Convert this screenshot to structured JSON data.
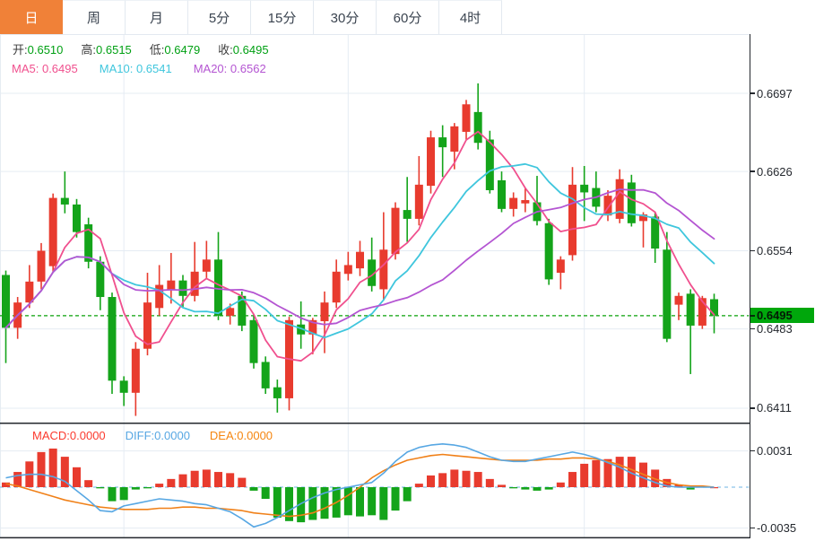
{
  "header": {
    "tabs": [
      {
        "label": "日",
        "selected": true
      },
      {
        "label": "周",
        "selected": false
      },
      {
        "label": "月",
        "selected": false
      },
      {
        "label": "5分",
        "selected": false
      },
      {
        "label": "15分",
        "selected": false
      },
      {
        "label": "30分",
        "selected": false
      },
      {
        "label": "60分",
        "selected": false
      },
      {
        "label": "4时",
        "selected": false
      }
    ]
  },
  "overlay": {
    "ohlc": [
      {
        "label": "开:",
        "value": "0.6510"
      },
      {
        "label": "高:",
        "value": "0.6515"
      },
      {
        "label": "低:",
        "value": "0.6479"
      },
      {
        "label": "收:",
        "value": "0.6495"
      }
    ],
    "ma": [
      {
        "label": "MA5:",
        "value": "0.6495"
      },
      {
        "label": "MA10:",
        "value": "0.6541"
      },
      {
        "label": "MA20:",
        "value": "0.6562"
      }
    ],
    "macd": [
      {
        "label": "MACD:",
        "value": "0.0000"
      },
      {
        "label": "DIFF:",
        "value": "0.0000"
      },
      {
        "label": "DEA:",
        "value": "0.0000"
      }
    ]
  },
  "price_axis": {
    "ticks": [
      "0.6697",
      "0.6626",
      "0.6554",
      "0.6483",
      "0.6411"
    ],
    "tag": "0.6495"
  },
  "macd_axis": {
    "ticks": [
      "0.0031",
      "-0.0035"
    ]
  },
  "colors": {
    "accent_tab": "#f08138",
    "candle_up": "#e83b2e",
    "candle_down": "#14a41a",
    "ma5": "#f0508e",
    "ma10": "#3fc6dd",
    "ma20": "#b455d2",
    "diff_line": "#57a7e3",
    "dea_line": "#f08018",
    "hist_up": "#e83b2e",
    "hist_down": "#14a41a",
    "tag_bg": "#00a70c",
    "dashed_price": "#0aa00a",
    "zero_dash": "#8cc3ea",
    "grid": "#e5ecf3",
    "frame": "#23272d",
    "ohlc_value_green": "#00a013"
  },
  "chart_data": [
    {
      "type": "candlestick",
      "title": "AUD daily candlestick with MA5/MA10/MA20",
      "last_bar": {
        "open": 0.651,
        "high": 0.6515,
        "low": 0.6479,
        "close": 0.6495
      },
      "ma_values": {
        "MA5": 0.6495,
        "MA10": 0.6541,
        "MA20": 0.6562
      },
      "ma_periods": [
        5,
        10,
        20
      ],
      "y_ticks": [
        0.6697,
        0.6626,
        0.6554,
        0.6483,
        0.6411
      ],
      "ylim": [
        0.6404,
        0.675
      ],
      "highlight_price": 0.6495,
      "grid": true,
      "x_gridline_indices": [
        10,
        29,
        49
      ],
      "up_color_meaning": "red = close above open, green = close below open",
      "candles": [
        [
          0.6532,
          0.6536,
          0.6452,
          0.6484
        ],
        [
          0.6484,
          0.6512,
          0.6474,
          0.6507
        ],
        [
          0.6507,
          0.6541,
          0.6502,
          0.6526
        ],
        [
          0.6526,
          0.6561,
          0.6519,
          0.6554
        ],
        [
          0.654,
          0.6606,
          0.6534,
          0.6602
        ],
        [
          0.6602,
          0.6626,
          0.6588,
          0.6596
        ],
        [
          0.6596,
          0.6601,
          0.6566,
          0.6571
        ],
        [
          0.6578,
          0.6584,
          0.6538,
          0.6544
        ],
        [
          0.6544,
          0.6549,
          0.65,
          0.6512
        ],
        [
          0.6512,
          0.6516,
          0.6424,
          0.6436
        ],
        [
          0.6436,
          0.644,
          0.6413,
          0.6425
        ],
        [
          0.6425,
          0.6471,
          0.6404,
          0.6465
        ],
        [
          0.6465,
          0.6534,
          0.6459,
          0.6507
        ],
        [
          0.6502,
          0.6541,
          0.6495,
          0.6523
        ],
        [
          0.6518,
          0.6552,
          0.6506,
          0.6527
        ],
        [
          0.6527,
          0.6532,
          0.6503,
          0.6513
        ],
        [
          0.6513,
          0.6562,
          0.6508,
          0.6535
        ],
        [
          0.6535,
          0.6563,
          0.6528,
          0.6546
        ],
        [
          0.6546,
          0.6571,
          0.6491,
          0.6495
        ],
        [
          0.6495,
          0.6506,
          0.6487,
          0.6502
        ],
        [
          0.6513,
          0.6517,
          0.6481,
          0.6486
        ],
        [
          0.6491,
          0.6496,
          0.6447,
          0.6452
        ],
        [
          0.6453,
          0.6458,
          0.6424,
          0.6429
        ],
        [
          0.643,
          0.6437,
          0.6407,
          0.642
        ],
        [
          0.642,
          0.6494,
          0.6409,
          0.6491
        ],
        [
          0.6487,
          0.6508,
          0.6465,
          0.6478
        ],
        [
          0.6478,
          0.6493,
          0.646,
          0.6491
        ],
        [
          0.649,
          0.6517,
          0.6461,
          0.6507
        ],
        [
          0.6507,
          0.6546,
          0.6502,
          0.6535
        ],
        [
          0.6533,
          0.6553,
          0.6527,
          0.6541
        ],
        [
          0.6538,
          0.6563,
          0.6531,
          0.6553
        ],
        [
          0.6546,
          0.6566,
          0.6517,
          0.6522
        ],
        [
          0.6519,
          0.6589,
          0.6509,
          0.6555
        ],
        [
          0.6551,
          0.6598,
          0.6546,
          0.6593
        ],
        [
          0.6591,
          0.6621,
          0.6562,
          0.6583
        ],
        [
          0.6583,
          0.664,
          0.6577,
          0.6614
        ],
        [
          0.6613,
          0.6663,
          0.6606,
          0.6657
        ],
        [
          0.6657,
          0.6668,
          0.6621,
          0.6648
        ],
        [
          0.6644,
          0.667,
          0.6628,
          0.6667
        ],
        [
          0.6662,
          0.6691,
          0.6655,
          0.6687
        ],
        [
          0.668,
          0.6706,
          0.6646,
          0.6652
        ],
        [
          0.6655,
          0.6663,
          0.6606,
          0.6609
        ],
        [
          0.6618,
          0.6626,
          0.6589,
          0.6592
        ],
        [
          0.6592,
          0.6607,
          0.6585,
          0.6602
        ],
        [
          0.6597,
          0.6611,
          0.6589,
          0.66
        ],
        [
          0.6598,
          0.6622,
          0.6577,
          0.6581
        ],
        [
          0.6579,
          0.6583,
          0.6523,
          0.6528
        ],
        [
          0.6534,
          0.6549,
          0.6519,
          0.6546
        ],
        [
          0.655,
          0.663,
          0.6545,
          0.6614
        ],
        [
          0.6614,
          0.6631,
          0.6581,
          0.6607
        ],
        [
          0.6611,
          0.6626,
          0.6589,
          0.6594
        ],
        [
          0.6586,
          0.6609,
          0.6581,
          0.6604
        ],
        [
          0.6583,
          0.6628,
          0.6579,
          0.6619
        ],
        [
          0.6616,
          0.6623,
          0.6576,
          0.6579
        ],
        [
          0.6581,
          0.6589,
          0.6557,
          0.6587
        ],
        [
          0.6585,
          0.6589,
          0.6543,
          0.6556
        ],
        [
          0.6555,
          0.6571,
          0.6471,
          0.6474
        ],
        [
          0.6505,
          0.6516,
          0.6491,
          0.6513
        ],
        [
          0.6515,
          0.6519,
          0.6442,
          0.6486
        ],
        [
          0.6486,
          0.6513,
          0.6483,
          0.6511
        ],
        [
          0.651,
          0.6515,
          0.6479,
          0.6495
        ]
      ]
    },
    {
      "type": "macd",
      "title": "MACD(12,26,9)",
      "current": {
        "MACD": 0.0,
        "DIFF": 0.0,
        "DEA": 0.0
      },
      "y_ticks": [
        0.0031,
        -0.0035
      ],
      "zero_line": 0,
      "histogram": [
        0.0004,
        0.0013,
        0.0022,
        0.003,
        0.0033,
        0.0026,
        0.0017,
        0.0006,
        -0.0001,
        -0.0012,
        -0.0011,
        -0.0002,
        -0.0001,
        0.0003,
        0.0007,
        0.0011,
        0.0014,
        0.0015,
        0.0013,
        0.0012,
        0.0008,
        -0.0003,
        -0.001,
        -0.0026,
        -0.0029,
        -0.003,
        -0.0028,
        -0.0027,
        -0.0026,
        -0.0024,
        -0.0025,
        -0.0024,
        -0.0028,
        -0.002,
        -0.0012,
        0.0003,
        0.001,
        0.0012,
        0.0015,
        0.0014,
        0.0013,
        0.0007,
        0.0002,
        -0.0001,
        -0.0002,
        -0.0003,
        -0.0002,
        0.0004,
        0.0013,
        0.002,
        0.0023,
        0.0024,
        0.0026,
        0.0026,
        0.0021,
        0.0015,
        0.0007,
        0.0002,
        -0.0002,
        0.0001,
        0.0
      ],
      "diff": [
        0.0008,
        0.001,
        0.0011,
        0.0011,
        0.0009,
        0.0005,
        -0.0003,
        -0.0011,
        -0.002,
        -0.0021,
        -0.0016,
        -0.0014,
        -0.0012,
        -0.001,
        -0.0011,
        -0.0012,
        -0.0014,
        -0.0015,
        -0.0018,
        -0.0021,
        -0.0027,
        -0.0034,
        -0.0031,
        -0.0026,
        -0.002,
        -0.0014,
        -0.0009,
        -0.0005,
        -0.0002,
        0.0,
        0.0002,
        0.0004,
        0.0012,
        0.0022,
        0.003,
        0.0034,
        0.0036,
        0.0037,
        0.0036,
        0.0034,
        0.003,
        0.0026,
        0.0023,
        0.0022,
        0.0022,
        0.0024,
        0.0026,
        0.0028,
        0.003,
        0.0028,
        0.0025,
        0.0021,
        0.0017,
        0.0012,
        0.0008,
        0.0004,
        0.0001,
        0.0,
        0.0,
        0.0,
        0.0
      ],
      "dea": [
        0.0003,
        0.0001,
        -0.0002,
        -0.0005,
        -0.0008,
        -0.0011,
        -0.0013,
        -0.0015,
        -0.0017,
        -0.0018,
        -0.0019,
        -0.0019,
        -0.0019,
        -0.0018,
        -0.0018,
        -0.0017,
        -0.0017,
        -0.0018,
        -0.0018,
        -0.0019,
        -0.002,
        -0.0022,
        -0.0023,
        -0.0024,
        -0.0025,
        -0.0024,
        -0.0022,
        -0.0018,
        -0.0013,
        -0.0007,
        0.0,
        0.0008,
        0.0014,
        0.0019,
        0.0023,
        0.0025,
        0.0027,
        0.0028,
        0.0027,
        0.0026,
        0.0025,
        0.0024,
        0.0023,
        0.0023,
        0.0023,
        0.0023,
        0.0024,
        0.0024,
        0.0025,
        0.0025,
        0.0024,
        0.0022,
        0.0019,
        0.0015,
        0.0011,
        0.0007,
        0.0004,
        0.0002,
        0.0001,
        0.0001,
        0.0
      ]
    }
  ]
}
